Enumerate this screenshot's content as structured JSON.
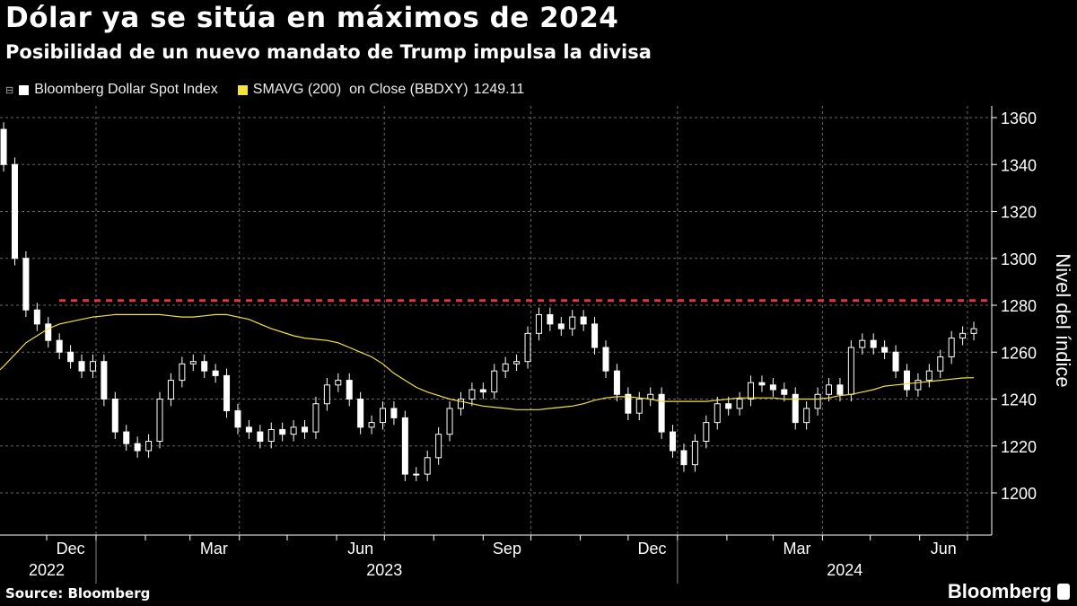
{
  "title": "Dólar ya se sitúa en máximos de 2024",
  "subtitle": "Posibilidad de un nuevo mandato de Trump impulsa la divisa",
  "source": "Source: Bloomberg",
  "brand": "Bloomberg",
  "chart_data": {
    "type": "candlestick",
    "title": "Dólar ya se sitúa en máximos de 2024",
    "ylabel": "Nivel del índice",
    "ylim": [
      1185,
      1365
    ],
    "yticks": [
      1200,
      1220,
      1240,
      1260,
      1280,
      1300,
      1320,
      1340,
      1360
    ],
    "grid": true,
    "legend_position": "top-left",
    "month_labels": [
      {
        "label": "Dec",
        "date": "2022-12-16"
      },
      {
        "label": "Mar",
        "date": "2023-03-16"
      },
      {
        "label": "Jun",
        "date": "2023-06-16"
      },
      {
        "label": "Sep",
        "date": "2023-09-16"
      },
      {
        "label": "Dec",
        "date": "2023-12-16"
      },
      {
        "label": "Mar",
        "date": "2024-03-16"
      },
      {
        "label": "Jun",
        "date": "2024-06-16"
      }
    ],
    "year_labels": [
      {
        "label": "2022",
        "date": "2022-12-01"
      },
      {
        "label": "2023",
        "date": "2023-07-01"
      },
      {
        "label": "2024",
        "date": "2024-04-15"
      }
    ],
    "reference_line": {
      "value": 1282,
      "color": "#e8333f",
      "style": "dashed"
    },
    "series": [
      {
        "name": "Bloomberg Dollar Spot Index",
        "color": "#ffffff",
        "start_date": "2022-11-04",
        "frequency": "weekly",
        "close": [
          1340,
          1300,
          1278,
          1272,
          1265,
          1260,
          1256,
          1252,
          1256,
          1240,
          1226,
          1221,
          1218,
          1222,
          1240,
          1248,
          1255,
          1256,
          1252,
          1250,
          1235,
          1228,
          1226,
          1222,
          1227,
          1225,
          1228,
          1226,
          1238,
          1246,
          1248,
          1240,
          1228,
          1230,
          1236,
          1232,
          1208,
          1208,
          1215,
          1225,
          1236,
          1240,
          1244,
          1243,
          1252,
          1255,
          1256,
          1268,
          1276,
          1272,
          1270,
          1275,
          1272,
          1262,
          1252,
          1242,
          1234,
          1240,
          1242,
          1226,
          1218,
          1212,
          1222,
          1230,
          1238,
          1236,
          1240,
          1247,
          1246,
          1244,
          1242,
          1230,
          1236,
          1242,
          1246,
          1242,
          1262,
          1265,
          1262,
          1260,
          1252,
          1244,
          1248,
          1252,
          1258,
          1266,
          1268,
          1270
        ]
      },
      {
        "name": "SMAVG (200)  on Close (BBDXY)",
        "last_value": "1249.11",
        "color": "#f5e23a",
        "start_date": "2022-11-04",
        "frequency": "weekly",
        "values": [
          1254,
          1259,
          1264,
          1267,
          1270,
          1272,
          1273,
          1274,
          1275,
          1275.5,
          1276,
          1276,
          1276,
          1276,
          1276,
          1275.5,
          1275,
          1275,
          1275.5,
          1276,
          1276,
          1275,
          1274,
          1272,
          1270,
          1268.5,
          1267,
          1266,
          1265.5,
          1265,
          1264,
          1262,
          1260,
          1258,
          1255,
          1251,
          1248,
          1245,
          1243,
          1241.5,
          1240,
          1239,
          1238,
          1237,
          1236.5,
          1236,
          1235.5,
          1235.5,
          1235.5,
          1236,
          1236.5,
          1237,
          1238,
          1239.5,
          1240.5,
          1241,
          1241,
          1240.5,
          1240,
          1239,
          1239,
          1239,
          1239,
          1239,
          1239.5,
          1240,
          1240.5,
          1240.5,
          1240.5,
          1240.5,
          1240,
          1240,
          1240,
          1240,
          1240.5,
          1241.5,
          1242,
          1243,
          1244,
          1245.5,
          1246,
          1246.5,
          1247,
          1247.5,
          1248,
          1248.5,
          1249,
          1249.11
        ]
      }
    ]
  }
}
